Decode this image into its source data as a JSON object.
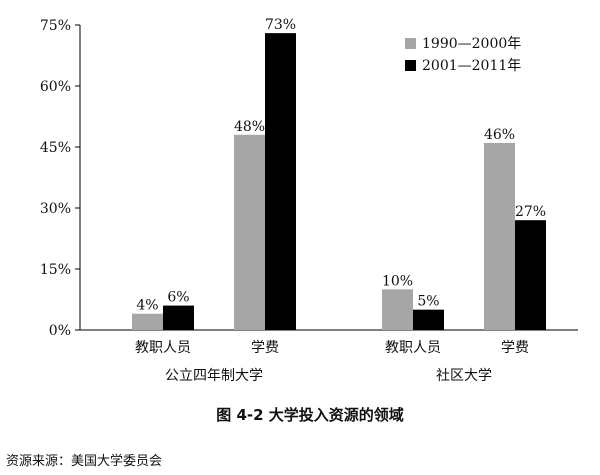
{
  "chart_data": {
    "type": "bar",
    "title": "图 4-2    大学投入资源的领域",
    "source": "资源来源：美国大学委员会",
    "ylim": [
      0,
      75
    ],
    "yticks": [
      {
        "value": 0,
        "label": "0%"
      },
      {
        "value": 15,
        "label": "15%"
      },
      {
        "value": 30,
        "label": "30%"
      },
      {
        "value": 45,
        "label": "45%"
      },
      {
        "value": 60,
        "label": "60%"
      },
      {
        "value": 75,
        "label": "75%"
      }
    ],
    "grid": false,
    "legend_position": "top-right",
    "groups": [
      {
        "label": "公立四年制大学",
        "categories": [
          {
            "label": "教职人员",
            "values": [
              4,
              6
            ],
            "value_labels": [
              "4%",
              "6%"
            ]
          },
          {
            "label": "学费",
            "values": [
              48,
              73
            ],
            "value_labels": [
              "48%",
              "73%"
            ]
          }
        ]
      },
      {
        "label": "社区大学",
        "categories": [
          {
            "label": "教职人员",
            "values": [
              10,
              5
            ],
            "value_labels": [
              "10%",
              "5%"
            ]
          },
          {
            "label": "学费",
            "values": [
              46,
              27
            ],
            "value_labels": [
              "46%",
              "27%"
            ]
          }
        ]
      }
    ],
    "series": [
      {
        "name": "1990—2000年",
        "color": "#a6a6a6"
      },
      {
        "name": "2001—2011年",
        "color": "#000000"
      }
    ]
  }
}
